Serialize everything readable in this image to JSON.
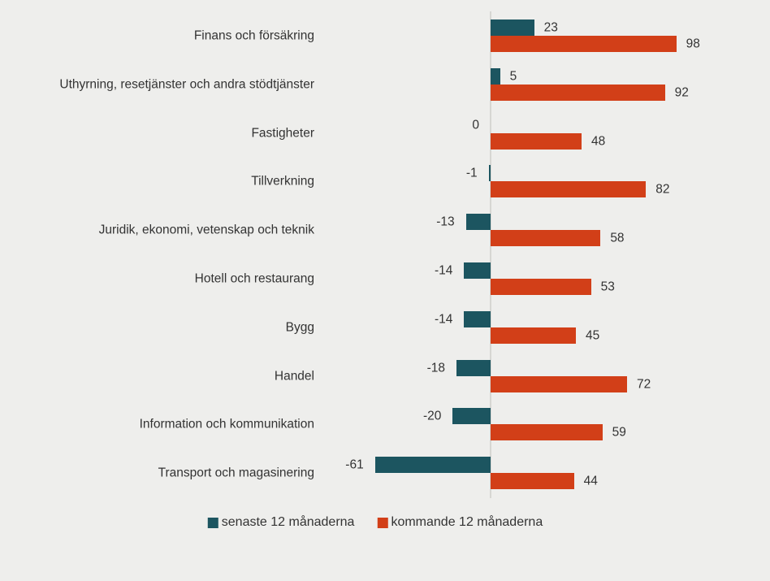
{
  "colors": {
    "background": "#eeeeec",
    "text": "#333333",
    "axis": "#d6d6d3",
    "series_last12": "#1c5560",
    "series_next12": "#d23f18"
  },
  "chart_data": {
    "type": "bar",
    "orientation": "horizontal",
    "title": "",
    "xlabel": "",
    "ylabel": "",
    "grid": false,
    "legend_position": "bottom",
    "value_labels_shown": true,
    "data_range": [
      -61,
      98
    ],
    "categories": [
      "Finans och försäkring",
      "Uthyrning, resetjänster och andra stödtjänster",
      "Fastigheter",
      "Tillverkning",
      "Juridik, ekonomi, vetenskap och teknik",
      "Hotell och restaurang",
      "Bygg",
      "Handel",
      "Information och kommunikation",
      "Transport och magasinering"
    ],
    "series": [
      {
        "name": "senaste 12 månaderna",
        "color": "#1c5560",
        "values": [
          23,
          5,
          0,
          -1,
          -13,
          -14,
          -14,
          -18,
          -20,
          -61
        ]
      },
      {
        "name": "kommande 12 månaderna",
        "color": "#d23f18",
        "values": [
          98,
          92,
          48,
          82,
          58,
          53,
          45,
          72,
          59,
          44
        ]
      }
    ]
  }
}
